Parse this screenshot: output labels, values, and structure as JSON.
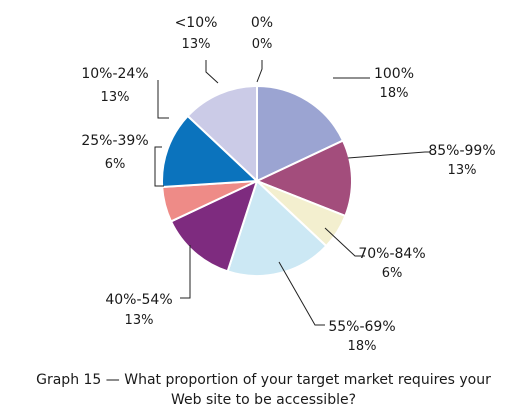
{
  "chart_data": {
    "type": "pie",
    "caption_line1": "Graph 15 — What proportion of your target market requires your",
    "caption_line2": "Web site to be accessible?",
    "slices": [
      {
        "label": "100%",
        "value_label": "18%",
        "value": 18,
        "color": "#9ba4d2"
      },
      {
        "label": "85%-99%",
        "value_label": "13%",
        "value": 13,
        "color": "#a34d7c"
      },
      {
        "label": "70%-84%",
        "value_label": "6%",
        "value": 6,
        "color": "#f3efcf"
      },
      {
        "label": "55%-69%",
        "value_label": "18%",
        "value": 18,
        "color": "#cce8f4"
      },
      {
        "label": "40%-54%",
        "value_label": "13%",
        "value": 13,
        "color": "#7e2b7f"
      },
      {
        "label": "25%-39%",
        "value_label": "6%",
        "value": 6,
        "color": "#ee8b87"
      },
      {
        "label": "10%-24%",
        "value_label": "13%",
        "value": 13,
        "color": "#0b73bd"
      },
      {
        "label": "<10%",
        "value_label": "13%",
        "value": 13,
        "color": "#cbcbe7"
      },
      {
        "label": "0%",
        "value_label": "0%",
        "value": 0,
        "color": "#ffffff"
      }
    ],
    "legend": "none",
    "start_angle_deg": 0,
    "direction": "clockwise"
  }
}
